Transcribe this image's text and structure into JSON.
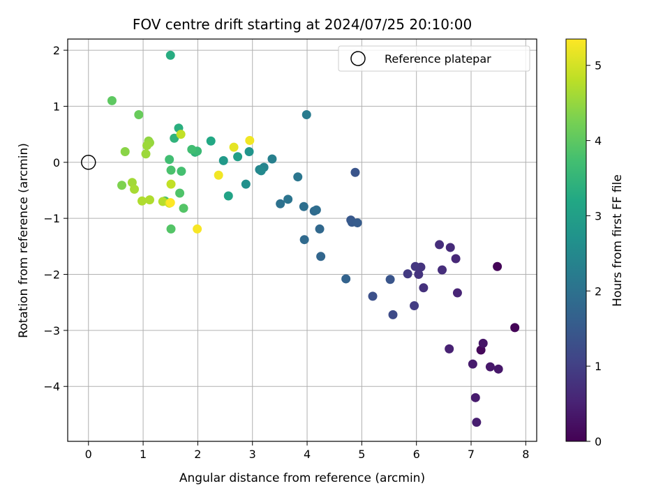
{
  "chart_data": {
    "type": "scatter",
    "title": "FOV centre drift starting at 2024/07/25 20:10:00",
    "xlabel": "Angular distance from reference (arcmin)",
    "ylabel": "Rotation from reference (arcmin)",
    "colorbar_label": "Hours from first FF file",
    "xlim": [
      -0.38,
      8.2
    ],
    "ylim": [
      -4.98,
      2.2
    ],
    "clim": [
      0,
      5.35
    ],
    "xticks": [
      0,
      1,
      2,
      3,
      4,
      5,
      6,
      7,
      8
    ],
    "yticks": [
      -4,
      -3,
      -2,
      -1,
      0,
      1,
      2
    ],
    "cticks": [
      0,
      1,
      2,
      3,
      4,
      5
    ],
    "grid": true,
    "legend": {
      "placement": "top-right",
      "entries": [
        {
          "label": "Reference platepar",
          "marker": "open-circle"
        }
      ]
    },
    "reference": {
      "x": 0,
      "y": 0
    },
    "points": [
      {
        "x": 7.48,
        "y": -1.86,
        "t": 0.05
      },
      {
        "x": 7.8,
        "y": -2.95,
        "t": 0.05
      },
      {
        "x": 7.18,
        "y": -3.35,
        "t": 0.1
      },
      {
        "x": 7.22,
        "y": -3.23,
        "t": 0.3
      },
      {
        "x": 7.35,
        "y": -3.65,
        "t": 0.35
      },
      {
        "x": 7.5,
        "y": -3.69,
        "t": 0.35
      },
      {
        "x": 7.03,
        "y": -3.6,
        "t": 0.4
      },
      {
        "x": 7.08,
        "y": -4.2,
        "t": 0.4
      },
      {
        "x": 7.1,
        "y": -4.64,
        "t": 0.45
      },
      {
        "x": 6.6,
        "y": -3.33,
        "t": 0.5
      },
      {
        "x": 6.75,
        "y": -2.33,
        "t": 0.55
      },
      {
        "x": 6.72,
        "y": -1.72,
        "t": 0.6
      },
      {
        "x": 6.62,
        "y": -1.52,
        "t": 0.65
      },
      {
        "x": 6.42,
        "y": -1.47,
        "t": 0.7
      },
      {
        "x": 6.47,
        "y": -1.92,
        "t": 0.7
      },
      {
        "x": 6.13,
        "y": -2.24,
        "t": 0.75
      },
      {
        "x": 6.08,
        "y": -1.87,
        "t": 0.8
      },
      {
        "x": 6.04,
        "y": -2.0,
        "t": 0.8
      },
      {
        "x": 5.98,
        "y": -1.86,
        "t": 0.85
      },
      {
        "x": 5.84,
        "y": -1.99,
        "t": 0.9
      },
      {
        "x": 5.96,
        "y": -2.56,
        "t": 0.95
      },
      {
        "x": 5.57,
        "y": -2.72,
        "t": 1.2
      },
      {
        "x": 5.2,
        "y": -2.39,
        "t": 1.3
      },
      {
        "x": 5.52,
        "y": -2.09,
        "t": 1.4
      },
      {
        "x": 4.88,
        "y": -0.18,
        "t": 1.4
      },
      {
        "x": 4.8,
        "y": -1.03,
        "t": 1.45
      },
      {
        "x": 4.82,
        "y": -1.07,
        "t": 1.5
      },
      {
        "x": 4.92,
        "y": -1.08,
        "t": 1.55
      },
      {
        "x": 4.71,
        "y": -2.08,
        "t": 1.7
      },
      {
        "x": 4.25,
        "y": -1.68,
        "t": 1.75
      },
      {
        "x": 4.23,
        "y": -1.19,
        "t": 1.8
      },
      {
        "x": 3.95,
        "y": -1.38,
        "t": 1.85
      },
      {
        "x": 4.13,
        "y": -0.87,
        "t": 1.85
      },
      {
        "x": 4.17,
        "y": -0.85,
        "t": 1.9
      },
      {
        "x": 3.94,
        "y": -0.79,
        "t": 1.95
      },
      {
        "x": 3.51,
        "y": -0.74,
        "t": 2.0
      },
      {
        "x": 3.65,
        "y": -0.66,
        "t": 2.05
      },
      {
        "x": 3.83,
        "y": -0.26,
        "t": 2.1
      },
      {
        "x": 3.99,
        "y": 0.85,
        "t": 2.2
      },
      {
        "x": 3.36,
        "y": 0.06,
        "t": 2.3
      },
      {
        "x": 3.21,
        "y": -0.09,
        "t": 2.4
      },
      {
        "x": 3.13,
        "y": -0.13,
        "t": 2.45
      },
      {
        "x": 3.16,
        "y": -0.15,
        "t": 2.5
      },
      {
        "x": 2.88,
        "y": -0.39,
        "t": 2.65
      },
      {
        "x": 2.94,
        "y": 0.19,
        "t": 2.75
      },
      {
        "x": 2.47,
        "y": 0.03,
        "t": 2.85
      },
      {
        "x": 2.73,
        "y": 0.1,
        "t": 3.0
      },
      {
        "x": 2.56,
        "y": -0.6,
        "t": 3.1
      },
      {
        "x": 2.24,
        "y": 0.38,
        "t": 3.2
      },
      {
        "x": 1.5,
        "y": 1.91,
        "t": 3.3
      },
      {
        "x": 1.65,
        "y": 0.61,
        "t": 3.35
      },
      {
        "x": 1.57,
        "y": 0.43,
        "t": 3.45
      },
      {
        "x": 1.95,
        "y": 0.18,
        "t": 3.45
      },
      {
        "x": 1.99,
        "y": 0.2,
        "t": 3.6
      },
      {
        "x": 1.89,
        "y": 0.23,
        "t": 3.7
      },
      {
        "x": 1.48,
        "y": 0.05,
        "t": 3.7
      },
      {
        "x": 1.7,
        "y": -0.16,
        "t": 3.75
      },
      {
        "x": 1.51,
        "y": -0.14,
        "t": 3.8
      },
      {
        "x": 1.4,
        "y": -0.69,
        "t": 3.8
      },
      {
        "x": 1.67,
        "y": -0.55,
        "t": 3.85
      },
      {
        "x": 1.74,
        "y": -0.82,
        "t": 3.9
      },
      {
        "x": 1.51,
        "y": -1.19,
        "t": 3.9
      },
      {
        "x": 0.43,
        "y": 1.1,
        "t": 4.0
      },
      {
        "x": 0.92,
        "y": 0.85,
        "t": 4.1
      },
      {
        "x": 0.61,
        "y": -0.41,
        "t": 4.3
      },
      {
        "x": 0.67,
        "y": 0.19,
        "t": 4.4
      },
      {
        "x": 1.1,
        "y": 0.38,
        "t": 4.45
      },
      {
        "x": 1.12,
        "y": 0.35,
        "t": 4.5
      },
      {
        "x": 1.07,
        "y": 0.3,
        "t": 4.55
      },
      {
        "x": 1.05,
        "y": 0.15,
        "t": 4.55
      },
      {
        "x": 0.8,
        "y": -0.36,
        "t": 4.6
      },
      {
        "x": 0.84,
        "y": -0.48,
        "t": 4.65
      },
      {
        "x": 0.98,
        "y": -0.69,
        "t": 4.7
      },
      {
        "x": 1.12,
        "y": -0.67,
        "t": 4.7
      },
      {
        "x": 1.36,
        "y": -0.7,
        "t": 4.75
      },
      {
        "x": 1.51,
        "y": -0.39,
        "t": 4.85
      },
      {
        "x": 1.69,
        "y": 0.5,
        "t": 4.85
      },
      {
        "x": 1.48,
        "y": -0.73,
        "t": 5.0
      },
      {
        "x": 2.66,
        "y": 0.27,
        "t": 5.15
      },
      {
        "x": 2.95,
        "y": 0.39,
        "t": 5.25
      },
      {
        "x": 2.38,
        "y": -0.23,
        "t": 5.25
      },
      {
        "x": 1.99,
        "y": -1.19,
        "t": 5.3
      },
      {
        "x": 1.5,
        "y": -0.72,
        "t": 5.35
      }
    ]
  }
}
